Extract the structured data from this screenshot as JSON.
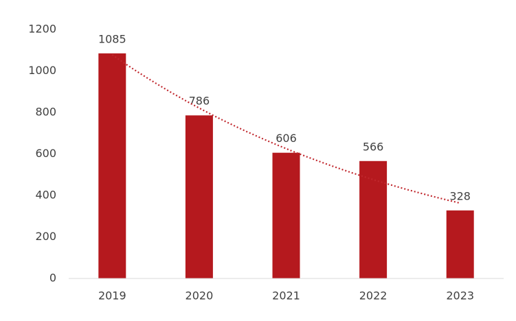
{
  "chart_data": {
    "type": "bar",
    "categories": [
      "2019",
      "2020",
      "2021",
      "2022",
      "2023"
    ],
    "values": [
      1085,
      786,
      606,
      566,
      328
    ],
    "color": "#b5191e",
    "ylim": [
      0,
      1200
    ],
    "yticks": [
      0,
      200,
      400,
      600,
      800,
      1000,
      1200
    ],
    "grid": false,
    "trendline": "exponential",
    "trendline_color": "#c0272d"
  }
}
